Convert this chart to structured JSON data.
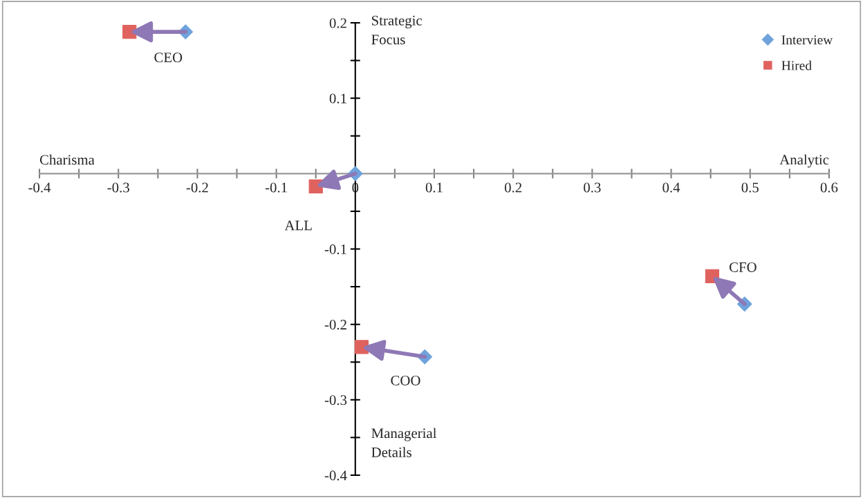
{
  "chart_data": {
    "type": "scatter",
    "series": [
      {
        "name": "Interview",
        "color": "#6fa3dc",
        "marker": "diamond",
        "x": [
          -0.215,
          0,
          0.088,
          0.493
        ],
        "values": [
          0.188,
          0,
          -0.243,
          -0.173
        ]
      },
      {
        "name": "Hired",
        "color": "#e0625e",
        "marker": "square",
        "x": [
          -0.286,
          -0.05,
          0.008,
          0.452
        ],
        "values": [
          0.188,
          -0.017,
          -0.23,
          -0.136
        ]
      }
    ],
    "xlim": [
      -0.4,
      0.6
    ],
    "xticks": [
      -0.4,
      {
        "value": -0.35,
        "label": null
      },
      -0.3,
      {
        "value": -0.25,
        "label": null
      },
      -0.2,
      {
        "value": -0.15,
        "label": null
      },
      -0.1,
      {
        "value": -0.05,
        "label": null
      },
      0,
      {
        "value": 0.05,
        "label": null
      },
      0.1,
      {
        "value": 0.15,
        "label": null
      },
      0.2,
      {
        "value": 0.25,
        "label": null
      },
      0.3,
      {
        "value": 0.35,
        "label": null
      },
      0.4,
      {
        "value": 0.45,
        "label": null
      },
      0.5,
      {
        "value": 0.55,
        "label": null
      },
      0.6
    ],
    "ylim": [
      -0.4,
      0.2
    ],
    "yticks": [
      -0.4,
      {
        "value": -0.35,
        "label": null
      },
      -0.3,
      {
        "value": -0.25,
        "label": null
      },
      -0.2,
      {
        "value": -0.15,
        "label": null
      },
      -0.1,
      {
        "value": -0.05,
        "label": null
      },
      {
        "value": 0,
        "label": null
      },
      {
        "value": 0.05,
        "label": null
      },
      0.1,
      {
        "value": 0.15,
        "label": null
      },
      0.2
    ],
    "annotations": [
      {
        "text": "CEO",
        "x": -0.215,
        "y": 0.188
      },
      {
        "text": "ALL",
        "x": -0.05,
        "y": -0.017
      },
      {
        "text": "COO",
        "x": 0.088,
        "y": -0.243
      },
      {
        "text": "CFO",
        "x": 0.452,
        "y": -0.136
      },
      "Charisma",
      "Analytic",
      "Strategic\nFocus",
      "Managerial\nDetails"
    ],
    "legend": "top right",
    "grid": false
  }
}
